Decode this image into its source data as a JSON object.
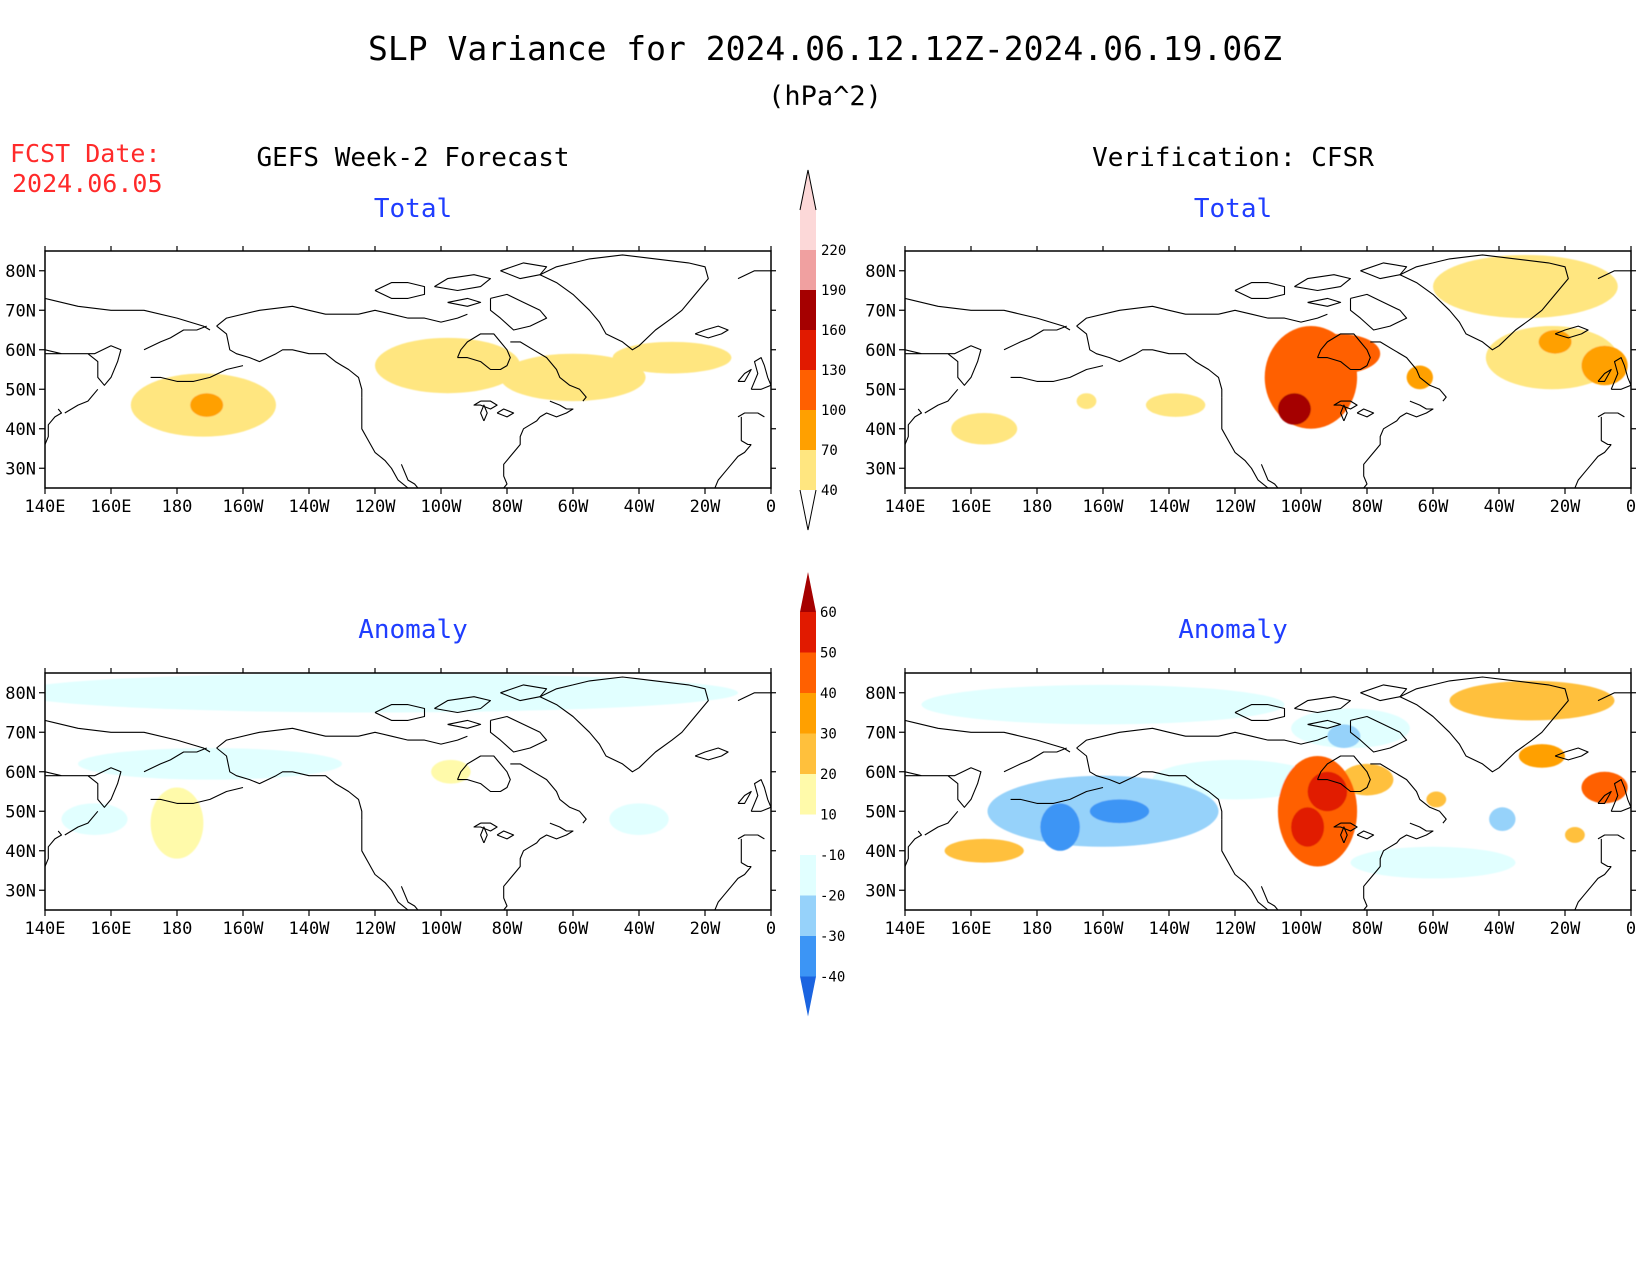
{
  "title": "SLP Variance for 2024.06.12.12Z-2024.06.19.06Z",
  "units": "(hPa^2)",
  "fcst_date": {
    "label": "FCST Date:",
    "value": "2024.06.05"
  },
  "forecast_header": "GEFS Week-2 Forecast",
  "verification_header": "Verification: CFSR",
  "panel_titles": {
    "total": "Total",
    "anomaly": "Anomaly"
  },
  "colors": {
    "title": "#000000",
    "fcst_date": "#ff2a2a",
    "panel_title": "#1f3dff",
    "land_outline": "#000000"
  },
  "map": {
    "lon_range": [
      140,
      360
    ],
    "lat_range": [
      25,
      85
    ],
    "lon_tick_labels": [
      "140E",
      "160E",
      "180",
      "160W",
      "140W",
      "120W",
      "100W",
      "80W",
      "60W",
      "40W",
      "20W",
      "0"
    ],
    "lat_tick_labels": [
      "30N",
      "40N",
      "50N",
      "60N",
      "70N",
      "80N"
    ]
  },
  "total_scale": {
    "levels": [
      40,
      70,
      100,
      130,
      160,
      190,
      220
    ],
    "colors": [
      "#ffe680",
      "#ffa000",
      "#ff6000",
      "#e11a00",
      "#a50000",
      "#f0a0a0",
      "#fcd8d8"
    ]
  },
  "anomaly_scale": {
    "levels": [
      -40,
      -30,
      -20,
      -10,
      10,
      20,
      30,
      40,
      50,
      60
    ],
    "colors": [
      "#1b64e0",
      "#3c95f5",
      "#96d2fa",
      "#e1ffff",
      "#ffffff",
      "#fffaaa",
      "#ffc03c",
      "#ffa000",
      "#ff6000",
      "#e11a00",
      "#a50000"
    ]
  },
  "chart_data": [
    {
      "type": "heatmap",
      "panel": "forecast_total",
      "blobs": [
        {
          "lon": 188,
          "lat": 46,
          "rlon": 22,
          "rlat": 8,
          "value": 50
        },
        {
          "lon": 189,
          "lat": 46,
          "rlon": 5,
          "rlat": 3,
          "value": 80
        },
        {
          "lon": 262,
          "lat": 56,
          "rlon": 22,
          "rlat": 7,
          "value": 50
        },
        {
          "lon": 300,
          "lat": 53,
          "rlon": 22,
          "rlat": 6,
          "value": 45
        },
        {
          "lon": 330,
          "lat": 58,
          "rlon": 18,
          "rlat": 4,
          "value": 45
        }
      ]
    },
    {
      "type": "heatmap",
      "panel": "verification_total",
      "blobs": [
        {
          "lon": 164,
          "lat": 40,
          "rlon": 10,
          "rlat": 4,
          "value": 60
        },
        {
          "lon": 195,
          "lat": 47,
          "rlon": 3,
          "rlat": 2,
          "value": 45
        },
        {
          "lon": 222,
          "lat": 46,
          "rlon": 9,
          "rlat": 3,
          "value": 45
        },
        {
          "lon": 263,
          "lat": 53,
          "rlon": 14,
          "rlat": 13,
          "value": 110
        },
        {
          "lon": 258,
          "lat": 45,
          "rlon": 5,
          "rlat": 4,
          "value": 160
        },
        {
          "lon": 272,
          "lat": 59,
          "rlon": 12,
          "rlat": 5,
          "value": 120
        },
        {
          "lon": 296,
          "lat": 53,
          "rlon": 4,
          "rlat": 3,
          "value": 80
        },
        {
          "lon": 328,
          "lat": 76,
          "rlon": 28,
          "rlat": 8,
          "value": 50
        },
        {
          "lon": 336,
          "lat": 58,
          "rlon": 20,
          "rlat": 8,
          "value": 55
        },
        {
          "lon": 337,
          "lat": 62,
          "rlon": 5,
          "rlat": 3,
          "value": 85
        },
        {
          "lon": 352,
          "lat": 56,
          "rlon": 7,
          "rlat": 5,
          "value": 80
        }
      ]
    },
    {
      "type": "heatmap",
      "panel": "forecast_anomaly",
      "blobs": [
        {
          "lon": 240,
          "lat": 80,
          "rlon": 110,
          "rlat": 5,
          "value": -12
        },
        {
          "lon": 190,
          "lat": 62,
          "rlon": 40,
          "rlat": 4,
          "value": -12
        },
        {
          "lon": 180,
          "lat": 47,
          "rlon": 8,
          "rlat": 9,
          "value": 15
        },
        {
          "lon": 263,
          "lat": 60,
          "rlon": 6,
          "rlat": 3,
          "value": 15
        },
        {
          "lon": 320,
          "lat": 48,
          "rlon": 9,
          "rlat": 4,
          "value": -12
        },
        {
          "lon": 155,
          "lat": 48,
          "rlon": 10,
          "rlat": 4,
          "value": -12
        }
      ]
    },
    {
      "type": "heatmap",
      "panel": "verification_anomaly",
      "blobs": [
        {
          "lon": 200,
          "lat": 77,
          "rlon": 55,
          "rlat": 5,
          "value": -20
        },
        {
          "lon": 200,
          "lat": 50,
          "rlon": 35,
          "rlat": 9,
          "value": -22
        },
        {
          "lon": 187,
          "lat": 46,
          "rlon": 6,
          "rlat": 6,
          "value": -38
        },
        {
          "lon": 205,
          "lat": 50,
          "rlon": 9,
          "rlat": 3,
          "value": -35
        },
        {
          "lon": 164,
          "lat": 40,
          "rlon": 12,
          "rlat": 3,
          "value": 28
        },
        {
          "lon": 265,
          "lat": 50,
          "rlon": 12,
          "rlat": 14,
          "value": 40
        },
        {
          "lon": 268,
          "lat": 55,
          "rlon": 6,
          "rlat": 5,
          "value": 58
        },
        {
          "lon": 262,
          "lat": 46,
          "rlon": 5,
          "rlat": 5,
          "value": 58
        },
        {
          "lon": 280,
          "lat": 58,
          "rlon": 8,
          "rlat": 4,
          "value": 25
        },
        {
          "lon": 275,
          "lat": 71,
          "rlon": 18,
          "rlat": 5,
          "value": -15
        },
        {
          "lon": 273,
          "lat": 69,
          "rlon": 5,
          "rlat": 3,
          "value": -30
        },
        {
          "lon": 330,
          "lat": 78,
          "rlon": 25,
          "rlat": 5,
          "value": 20
        },
        {
          "lon": 333,
          "lat": 64,
          "rlon": 7,
          "rlat": 3,
          "value": 35
        },
        {
          "lon": 321,
          "lat": 48,
          "rlon": 4,
          "rlat": 3,
          "value": -30
        },
        {
          "lon": 301,
          "lat": 53,
          "rlon": 3,
          "rlat": 2,
          "value": 25
        },
        {
          "lon": 352,
          "lat": 56,
          "rlon": 7,
          "rlat": 4,
          "value": 40
        },
        {
          "lon": 343,
          "lat": 44,
          "rlon": 3,
          "rlat": 2,
          "value": 25
        },
        {
          "lon": 300,
          "lat": 37,
          "rlon": 25,
          "rlat": 4,
          "value": -12
        },
        {
          "lon": 240,
          "lat": 58,
          "rlon": 25,
          "rlat": 5,
          "value": -12
        }
      ]
    }
  ]
}
